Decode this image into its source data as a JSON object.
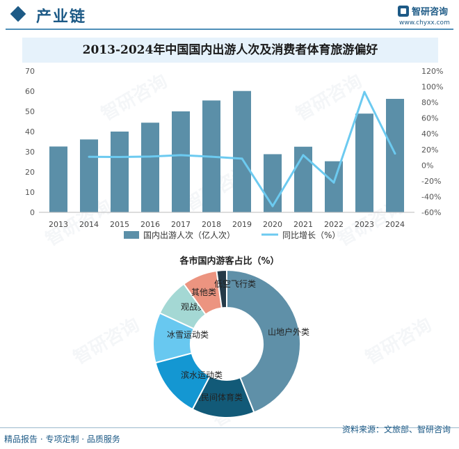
{
  "header": {
    "title": "产业链",
    "logo_name": "智研咨询",
    "logo_url": "www.chyxx.com"
  },
  "watermark": {
    "text": "智研咨询"
  },
  "chart_data": [
    {
      "type": "bar",
      "title": "2013-2024年中国国内出游人次及消费者体育旅游偏好",
      "categories": [
        "2013",
        "2014",
        "2015",
        "2016",
        "2017",
        "2018",
        "2019",
        "2020",
        "2021",
        "2022",
        "2023",
        "2024"
      ],
      "series": [
        {
          "name": "国内出游人次（亿人次）",
          "type": "bar",
          "axis": "left",
          "color": "#5b8fa8",
          "values": [
            32.6,
            36.1,
            40.0,
            44.4,
            50.0,
            55.4,
            60.1,
            28.8,
            32.5,
            25.3,
            48.9,
            56.2
          ]
        },
        {
          "name": "同比增长（%）",
          "type": "line",
          "axis": "right",
          "color": "#6ccaf0",
          "values": [
            null,
            10.7,
            10.5,
            11.0,
            12.8,
            10.8,
            8.4,
            -52.1,
            12.8,
            -22.1,
            93.3,
            14.8
          ]
        }
      ],
      "ylim_left": [
        0,
        70
      ],
      "yticks_left": [
        0,
        10,
        20,
        30,
        40,
        50,
        60,
        70
      ],
      "ylim_right": [
        -60,
        120
      ],
      "yticks_right": [
        "-60%",
        "-40%",
        "-20%",
        "0%",
        "20%",
        "40%",
        "60%",
        "80%",
        "100%",
        "120%"
      ],
      "legend": "bottom"
    },
    {
      "type": "pie",
      "title": "各市国内游客占比（%）",
      "slices": [
        {
          "label": "山地户外类",
          "value": 40,
          "color": "#5f90a8"
        },
        {
          "label": "民族民间体育类",
          "value": 12.5,
          "color": "#125a78"
        },
        {
          "label": "滨水运动类",
          "value": 12,
          "color": "#1497d2"
        },
        {
          "label": "冰雪运动类",
          "value": 10,
          "color": "#68c8f0"
        },
        {
          "label": "观战类",
          "value": 7.5,
          "color": "#a4d8d4"
        },
        {
          "label": "其他类",
          "value": 7,
          "color": "#ec9480"
        },
        {
          "label": "低空飞行类",
          "value": 2,
          "color": "#253a48"
        }
      ]
    }
  ],
  "footer": {
    "left": "精品报告 · 专项定制 · 品质服务",
    "right": "资料来源：文旅部、智研咨询"
  }
}
